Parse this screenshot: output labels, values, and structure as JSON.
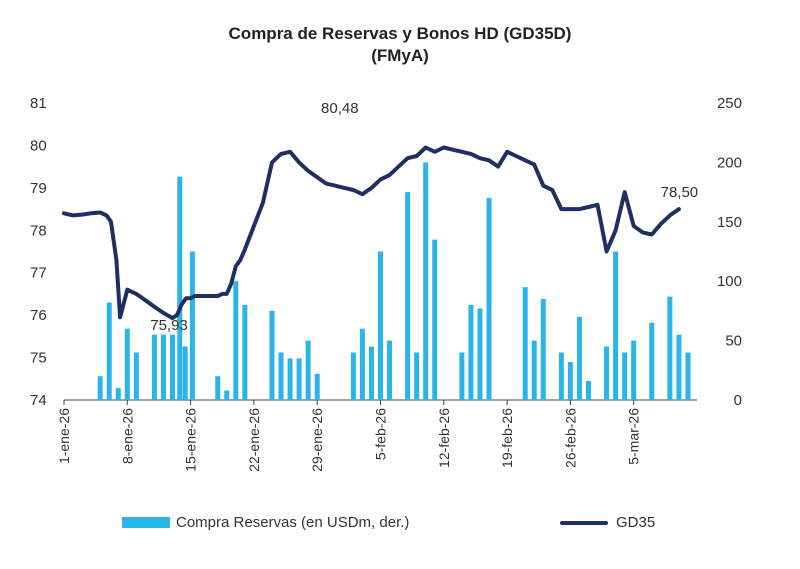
{
  "chart_data": {
    "type": "bar+line",
    "title": "Compra de Reservas y Bonos HD (GD35D)",
    "subtitle": "(FMyA)",
    "left_axis": {
      "ylim": [
        74,
        81
      ],
      "ticks": [
        "81",
        "80",
        "79",
        "78",
        "77",
        "76",
        "75",
        "74"
      ]
    },
    "right_axis": {
      "ylim": [
        0,
        250
      ],
      "ticks": [
        "250",
        "200",
        "150",
        "100",
        "50",
        "0"
      ]
    },
    "x_range_days": [
      0,
      70
    ],
    "x_ticks": [
      {
        "day": 0,
        "label": "1-ene-26"
      },
      {
        "day": 7,
        "label": "8-ene-26"
      },
      {
        "day": 14,
        "label": "15-ene-26"
      },
      {
        "day": 21,
        "label": "22-ene-26"
      },
      {
        "day": 28,
        "label": "29-ene-26"
      },
      {
        "day": 35,
        "label": "5-feb-26"
      },
      {
        "day": 42,
        "label": "12-feb-26"
      },
      {
        "day": 49,
        "label": "19-feb-26"
      },
      {
        "day": 56,
        "label": "26-feb-26"
      },
      {
        "day": 63,
        "label": "5-mar-26"
      }
    ],
    "series": [
      {
        "name": "Compra Reservas (en USDm, der.)",
        "type": "bar",
        "axis": "right",
        "color": "#29b5e8",
        "x": [
          4,
          5,
          6,
          7,
          8,
          10,
          11,
          12,
          12.8,
          13.4,
          14.2,
          17,
          18,
          19,
          20,
          23,
          24,
          25,
          26,
          27,
          28,
          32,
          33,
          34,
          35,
          36,
          38,
          39,
          40,
          41,
          44,
          45,
          46,
          47,
          51,
          52,
          53,
          55,
          56,
          57,
          58,
          60,
          61,
          62,
          63,
          65,
          67,
          68,
          69
        ],
        "values": [
          20,
          82,
          10,
          60,
          40,
          55,
          55,
          55,
          188,
          45,
          125,
          20,
          8,
          100,
          80,
          75,
          40,
          35,
          35,
          50,
          22,
          40,
          60,
          45,
          125,
          50,
          175,
          40,
          200,
          135,
          40,
          80,
          77,
          170,
          95,
          50,
          85,
          40,
          32,
          70,
          16,
          45,
          125,
          40,
          50,
          65,
          87,
          55,
          40
        ]
      },
      {
        "name": "GD35",
        "type": "line",
        "axis": "left",
        "color": "#1f2f64",
        "x": [
          0,
          1,
          2,
          3,
          4,
          4.7,
          5.2,
          5.8,
          6.2,
          7,
          8,
          9,
          10,
          11,
          12,
          12.5,
          13,
          13.5,
          14,
          14.5,
          15,
          15.5,
          16,
          16.5,
          17,
          17.5,
          18,
          18.5,
          19,
          19.5,
          20,
          21,
          22,
          23,
          24,
          25,
          26,
          27,
          28,
          29,
          30,
          31,
          32,
          33,
          34,
          35,
          36,
          37,
          38,
          39,
          40,
          41,
          42,
          43,
          44,
          45,
          46,
          47,
          48,
          49,
          50,
          51,
          52,
          53,
          54,
          55,
          56,
          57,
          58,
          59,
          60,
          61,
          62,
          63,
          64,
          65,
          66,
          67,
          68
        ],
        "values": [
          78.4,
          78.35,
          78.37,
          78.4,
          78.42,
          78.35,
          78.2,
          77.3,
          75.95,
          76.6,
          76.5,
          76.35,
          76.2,
          76.05,
          75.93,
          76.0,
          76.25,
          76.4,
          76.4,
          76.45,
          76.45,
          76.45,
          76.45,
          76.45,
          76.45,
          76.5,
          76.5,
          76.75,
          77.15,
          77.3,
          77.55,
          78.1,
          78.65,
          79.6,
          79.8,
          79.85,
          79.6,
          79.4,
          79.25,
          79.1,
          79.05,
          79.0,
          78.95,
          78.85,
          79.0,
          79.2,
          79.3,
          79.5,
          79.7,
          79.75,
          79.95,
          79.85,
          79.95,
          79.9,
          79.85,
          79.8,
          79.7,
          79.65,
          79.5,
          79.85,
          79.75,
          79.65,
          79.55,
          79.05,
          78.95,
          78.5,
          78.5,
          78.5,
          78.55,
          78.6,
          77.5,
          78.0,
          78.9,
          78.1,
          77.95,
          77.9,
          78.15,
          78.35,
          78.5
        ]
      }
    ],
    "annotations": [
      {
        "text": "80,48",
        "day": 30.5,
        "value": 80.48
      },
      {
        "text": "75,93",
        "day": 12.5,
        "value": 75.93
      },
      {
        "text": "78,50",
        "day": 67.5,
        "value": 78.5
      }
    ],
    "legend": [
      {
        "label": "Compra Reservas (en USDm, der.)",
        "kind": "bar",
        "color": "#29b5e8"
      },
      {
        "label": "GD35",
        "kind": "line",
        "color": "#1f2f64"
      }
    ]
  }
}
